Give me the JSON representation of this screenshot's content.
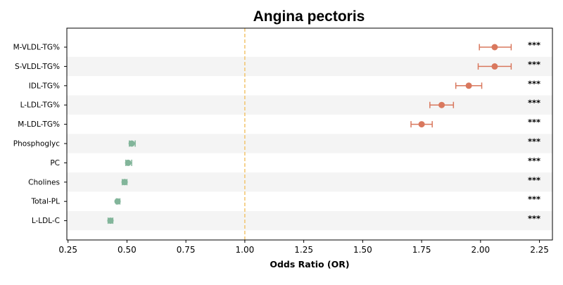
{
  "chart_data": {
    "type": "forest",
    "title": "Angina pectoris",
    "xlabel": "Odds Ratio (OR)",
    "xlim": [
      0.245,
      2.305
    ],
    "xticks": [
      0.25,
      0.5,
      0.75,
      1.0,
      1.25,
      1.5,
      1.75,
      2.0,
      2.25
    ],
    "xtick_labels": [
      "0.25",
      "0.50",
      "0.75",
      "1.00",
      "1.25",
      "1.50",
      "1.75",
      "2.00",
      "2.25"
    ],
    "reference_line": 1.0,
    "reference_line_color": "#f2c46d",
    "positive_color": "#d9785e",
    "negative_color": "#82b59a",
    "band_color": "#f4f4f4",
    "grid": false,
    "rows": [
      {
        "label": "M-VLDL-TG%",
        "or": 2.06,
        "ci_low": 1.995,
        "ci_high": 2.13,
        "sig": "***"
      },
      {
        "label": "S-VLDL-TG%",
        "or": 2.06,
        "ci_low": 1.99,
        "ci_high": 2.13,
        "sig": "***"
      },
      {
        "label": "IDL-TG%",
        "or": 1.95,
        "ci_low": 1.895,
        "ci_high": 2.005,
        "sig": "***"
      },
      {
        "label": "L-LDL-TG%",
        "or": 1.835,
        "ci_low": 1.785,
        "ci_high": 1.885,
        "sig": "***"
      },
      {
        "label": "M-LDL-TG%",
        "or": 1.75,
        "ci_low": 1.705,
        "ci_high": 1.795,
        "sig": "***"
      },
      {
        "label": "Phosphoglyc",
        "or": 0.52,
        "ci_low": 0.51,
        "ci_high": 0.535,
        "sig": "***"
      },
      {
        "label": "PC",
        "or": 0.505,
        "ci_low": 0.495,
        "ci_high": 0.52,
        "sig": "***"
      },
      {
        "label": "Cholines",
        "or": 0.49,
        "ci_low": 0.48,
        "ci_high": 0.5,
        "sig": "***"
      },
      {
        "label": "Total-PL",
        "or": 0.46,
        "ci_low": 0.455,
        "ci_high": 0.47,
        "sig": "***"
      },
      {
        "label": "L-LDL-C",
        "or": 0.43,
        "ci_low": 0.42,
        "ci_high": 0.44,
        "sig": "***"
      }
    ]
  }
}
